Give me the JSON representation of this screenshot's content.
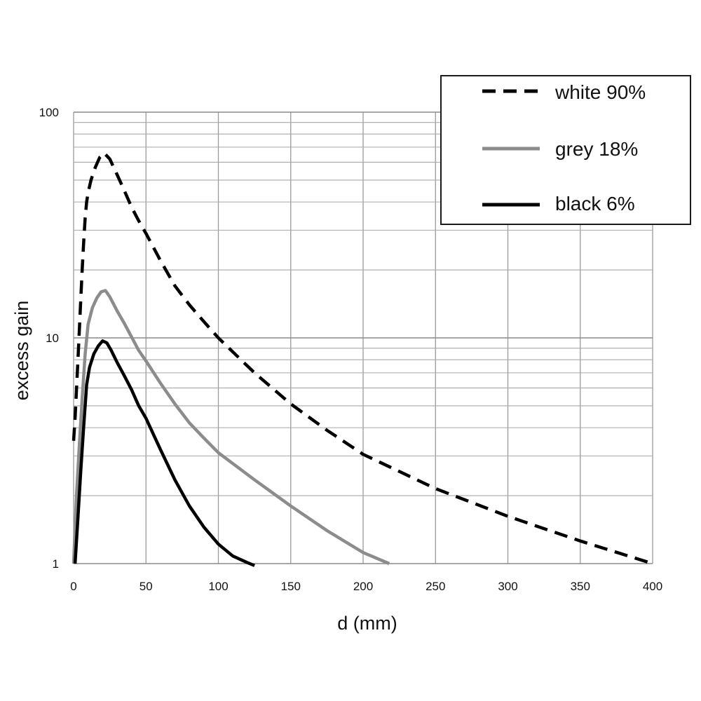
{
  "chart_data": {
    "type": "line",
    "title": "",
    "xlabel": "d (mm)",
    "ylabel": "excess gain",
    "xlim": [
      0,
      400
    ],
    "ylim": [
      1,
      100
    ],
    "yscale": "log",
    "grid": true,
    "legend_position": "top-right",
    "x_ticks": [
      "0",
      "50",
      "100",
      "150",
      "200",
      "250",
      "300",
      "350",
      "400"
    ],
    "y_ticks": [
      "1",
      "10",
      "100"
    ],
    "series": [
      {
        "name": "white 90%",
        "style": "dashed",
        "color": "#000000",
        "x": [
          0,
          1,
          2,
          3,
          4,
          5,
          6,
          7,
          8,
          9,
          10,
          12,
          15,
          18,
          21,
          25,
          30,
          35,
          40,
          45,
          50,
          60,
          70,
          80,
          90,
          100,
          125,
          150,
          175,
          200,
          250,
          300,
          350,
          400
        ],
        "y": [
          3.5,
          4.4,
          5.9,
          8.0,
          11.0,
          15.0,
          20.5,
          27.0,
          34.0,
          40.0,
          44.0,
          50.0,
          57.0,
          63.0,
          66.0,
          62.0,
          53.0,
          45.0,
          38.0,
          33.0,
          29.0,
          22.0,
          17.0,
          14.0,
          11.8,
          10.0,
          7.0,
          5.1,
          3.9,
          3.05,
          2.15,
          1.62,
          1.26,
          1.0
        ]
      },
      {
        "name": "grey 18%",
        "style": "solid",
        "color": "#8c8c8c",
        "x": [
          0,
          2,
          4,
          6,
          8,
          10,
          13,
          16,
          19,
          22,
          25,
          30,
          35,
          40,
          45,
          50,
          60,
          70,
          80,
          90,
          100,
          125,
          150,
          175,
          200,
          218
        ],
        "y": [
          1.0,
          2.0,
          3.4,
          5.5,
          8.5,
          11.5,
          13.6,
          15.0,
          16.0,
          16.2,
          15.2,
          13.2,
          11.6,
          10.1,
          8.8,
          7.9,
          6.3,
          5.1,
          4.2,
          3.6,
          3.1,
          2.35,
          1.8,
          1.4,
          1.12,
          1.0
        ]
      },
      {
        "name": "black 6%",
        "style": "solid",
        "color": "#000000",
        "x": [
          1,
          3,
          5,
          7,
          9,
          11,
          14,
          17,
          20,
          23,
          26,
          30,
          35,
          40,
          45,
          50,
          60,
          70,
          80,
          90,
          100,
          110,
          120,
          125
        ],
        "y": [
          1.0,
          1.6,
          2.6,
          4.1,
          6.2,
          7.4,
          8.5,
          9.2,
          9.7,
          9.5,
          8.8,
          7.8,
          6.8,
          5.9,
          5.0,
          4.4,
          3.2,
          2.35,
          1.8,
          1.45,
          1.22,
          1.08,
          1.01,
          0.98
        ]
      }
    ]
  }
}
